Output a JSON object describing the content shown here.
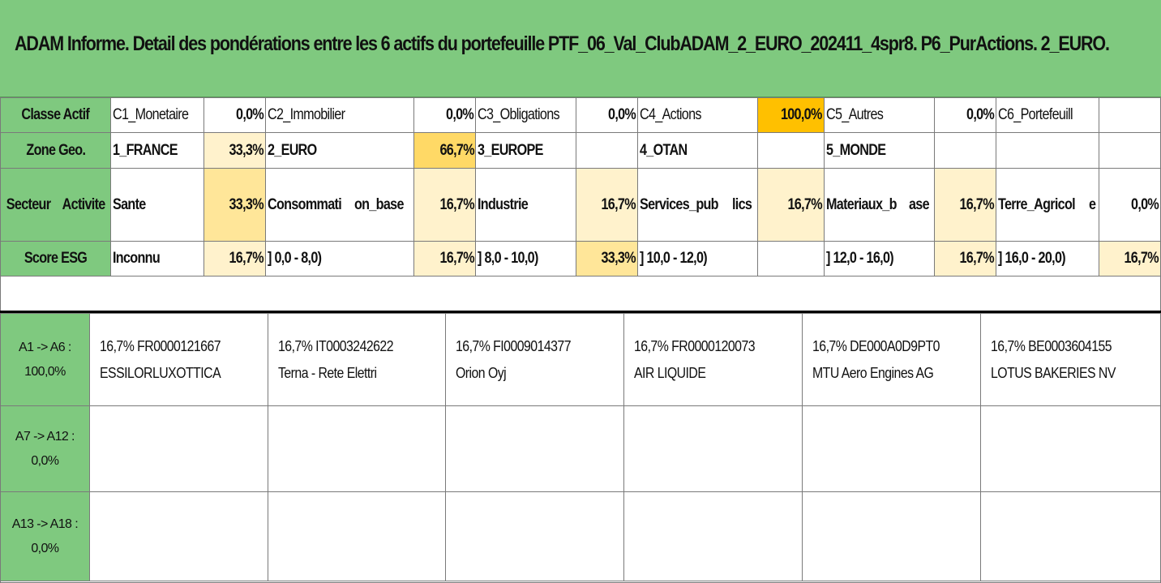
{
  "title": "ADAM Informe. Detail des pondérations entre les 6 actifs du portefeuille PTF_06_Val_ClubADAM_2_EURO_202411_4spr8. P6_PurActions. 2_EURO.",
  "rows": {
    "classe_actif": {
      "header": "Classe Actif",
      "cells": [
        {
          "label": "C1_Monetaire",
          "value": "0,0%"
        },
        {
          "label": "C2_Immobilier",
          "value": "0,0%"
        },
        {
          "label": "C3_Obligations",
          "value": "0,0%"
        },
        {
          "label": "C4_Actions",
          "value": "100,0%"
        },
        {
          "label": "C5_Autres",
          "value": "0,0%"
        },
        {
          "label": "C6_Portefeuill",
          "value": ""
        }
      ]
    },
    "zone_geo": {
      "header": "Zone Geo.",
      "cells": [
        {
          "label": "1_FRANCE",
          "value": "33,3%"
        },
        {
          "label": "2_EURO",
          "value": "66,7%"
        },
        {
          "label": "3_EUROPE",
          "value": ""
        },
        {
          "label": "4_OTAN",
          "value": ""
        },
        {
          "label": "5_MONDE",
          "value": ""
        },
        {
          "label": "",
          "value": ""
        }
      ]
    },
    "secteur": {
      "header_line1": "Secteur",
      "header_line2": "Activite",
      "cells": [
        {
          "label_line1": "Sante",
          "label_line2": "",
          "value": "33,3%"
        },
        {
          "label_line1": "Consommati",
          "label_line2": "on_base",
          "value": "16,7%"
        },
        {
          "label_line1": "Industrie",
          "label_line2": "",
          "value": "16,7%"
        },
        {
          "label_line1": "Services_pub",
          "label_line2": "lics",
          "value": "16,7%"
        },
        {
          "label_line1": "Materiaux_b",
          "label_line2": "ase",
          "value": "16,7%"
        },
        {
          "label_line1": "Terre_Agricol",
          "label_line2": "e",
          "value": "0,0%"
        }
      ]
    },
    "score_esg": {
      "header": "Score ESG",
      "cells": [
        {
          "label": "Inconnu",
          "value": "16,7%"
        },
        {
          "label": "] 0,0 - 8,0)",
          "value": "16,7%"
        },
        {
          "label": "] 8,0 - 10,0)",
          "value": "33,3%"
        },
        {
          "label": "] 10,0 - 12,0)",
          "value": ""
        },
        {
          "label": "] 12,0 - 16,0)",
          "value": "16,7%"
        },
        {
          "label": "] 16,0 - 20,0)",
          "value": "16,7%"
        }
      ]
    }
  },
  "asset_groups": [
    {
      "header_line1": "A1 -> A6 :",
      "header_line2": "100,0%",
      "assets": [
        {
          "line1": "16,7% FR0000121667",
          "line2": "ESSILORLUXOTTICA"
        },
        {
          "line1": "16,7% IT0003242622",
          "line2": "Terna - Rete Elettri"
        },
        {
          "line1": "16,7% FI0009014377",
          "line2": "Orion Oyj"
        },
        {
          "line1": "16,7% FR0000120073",
          "line2": "AIR LIQUIDE"
        },
        {
          "line1": "16,7% DE000A0D9PT0",
          "line2": "MTU Aero Engines AG"
        },
        {
          "line1": "16,7% BE0003604155",
          "line2": "LOTUS BAKERIES NV"
        }
      ]
    },
    {
      "header_line1": "A7 -> A12 : 0,0%",
      "header_line2": "",
      "assets": []
    },
    {
      "header_line1": "A13 -> A18 :",
      "header_line2": "0,0%",
      "assets": []
    }
  ],
  "colors": {
    "header_green": "#7fc97f",
    "shade_light": "#fff2cc",
    "shade_mid": "#ffe699",
    "shade_strong": "#ffd966",
    "shade_max": "#ffc000"
  }
}
